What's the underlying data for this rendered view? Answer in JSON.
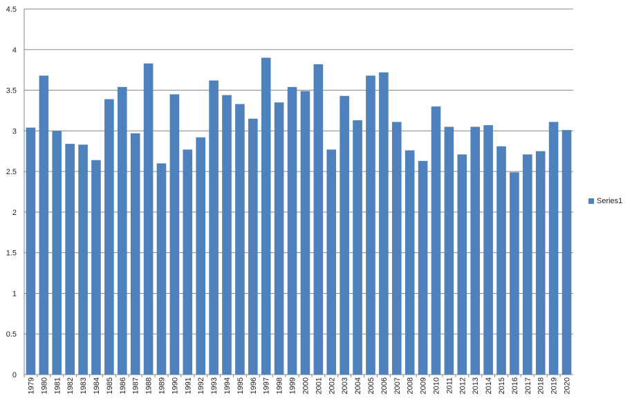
{
  "chart_data": {
    "type": "bar",
    "categories": [
      "1979",
      "1980",
      "1981",
      "1982",
      "1983",
      "1984",
      "1985",
      "1986",
      "1987",
      "1988",
      "1989",
      "1990",
      "1991",
      "1992",
      "1993",
      "1994",
      "1995",
      "1996",
      "1997",
      "1998",
      "1999",
      "2000",
      "2001",
      "2002",
      "2003",
      "2004",
      "2005",
      "2006",
      "2007",
      "2008",
      "2009",
      "2010",
      "2011",
      "2012",
      "2013",
      "2014",
      "2015",
      "2016",
      "2017",
      "2018",
      "2019",
      "2020"
    ],
    "series": [
      {
        "name": "Series1",
        "color": "#4f81bd",
        "values": [
          3.04,
          3.68,
          3.0,
          2.84,
          2.83,
          2.64,
          3.39,
          3.54,
          2.97,
          3.83,
          2.6,
          3.45,
          2.77,
          2.92,
          3.62,
          3.44,
          3.33,
          3.15,
          3.9,
          3.35,
          3.54,
          3.49,
          3.82,
          2.77,
          3.43,
          3.13,
          3.68,
          3.72,
          3.11,
          2.76,
          2.63,
          3.3,
          3.05,
          2.71,
          3.05,
          3.07,
          2.81,
          2.49,
          2.71,
          2.75,
          3.11,
          3.01
        ]
      }
    ],
    "ylim": [
      0,
      4.5
    ],
    "yticks": [
      "0",
      "0.5",
      "1",
      "1.5",
      "2",
      "2.5",
      "3",
      "3.5",
      "4",
      "4.5"
    ],
    "grid": true,
    "legend_position": "right",
    "title": "",
    "xlabel": "",
    "ylabel": ""
  }
}
